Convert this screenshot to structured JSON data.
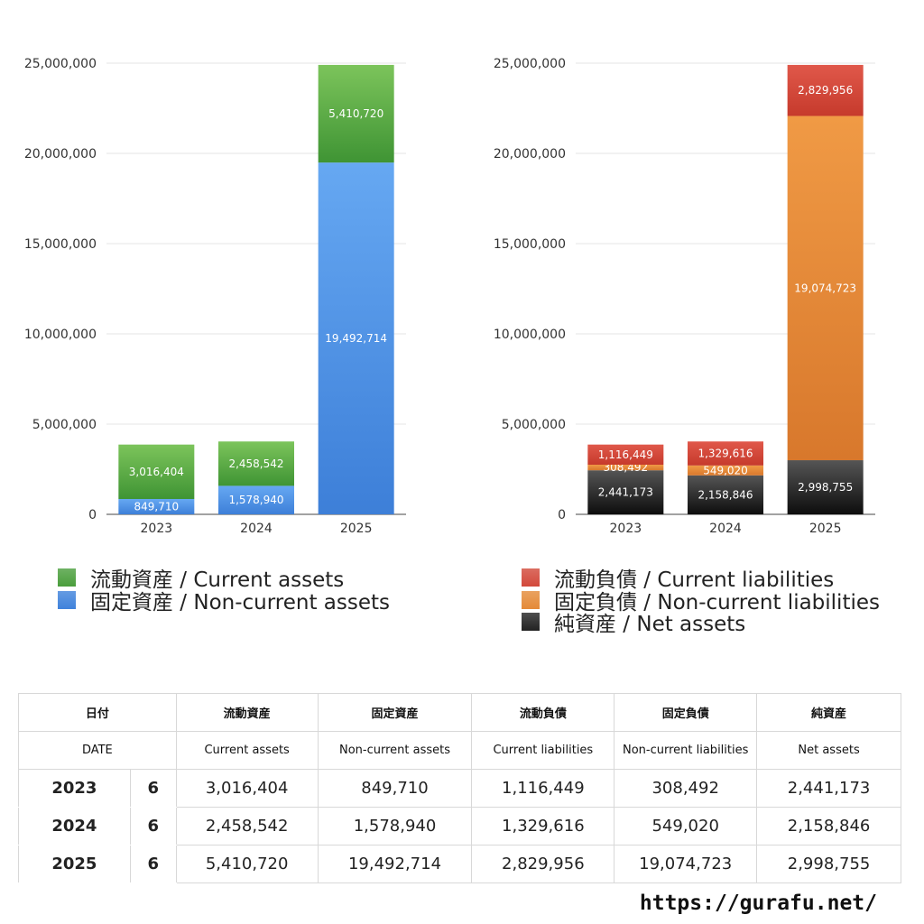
{
  "chart_data": [
    {
      "type": "bar",
      "stacked": true,
      "categories": [
        "2023",
        "2024",
        "2025"
      ],
      "series": [
        {
          "name": "固定資産 / Non-current assets",
          "values": [
            849710,
            1578940,
            19492714
          ],
          "color": "#3d7fd8",
          "color_top": "#66a8f2"
        },
        {
          "name": "流動資産 / Current assets",
          "values": [
            3016404,
            2458542,
            5410720
          ],
          "color": "#3f9434",
          "color_top": "#7cc45b"
        }
      ],
      "ylim": [
        0,
        25000000
      ],
      "yticks": [
        "0",
        "5,000,000",
        "10,000,000",
        "15,000,000",
        "20,000,000",
        "25,000,000"
      ],
      "grid": true,
      "legend": "bottom"
    },
    {
      "type": "bar",
      "stacked": true,
      "categories": [
        "2023",
        "2024",
        "2025"
      ],
      "series": [
        {
          "name": "純資産 / Net assets",
          "values": [
            2441173,
            2158846,
            2998755
          ],
          "color": "#0d0d0d",
          "color_top": "#555555"
        },
        {
          "name": "固定負債 / Non-current liabilities",
          "values": [
            308492,
            549020,
            19074723
          ],
          "color": "#d8782c",
          "color_top": "#f09a45"
        },
        {
          "name": "流動負債 / Current liabilities",
          "values": [
            1116449,
            1329616,
            2829956
          ],
          "color": "#c63a2c",
          "color_top": "#e0584a"
        }
      ],
      "ylim": [
        0,
        25000000
      ],
      "yticks": [
        "0",
        "5,000,000",
        "10,000,000",
        "15,000,000",
        "20,000,000",
        "25,000,000"
      ],
      "grid": true,
      "legend": "bottom"
    }
  ],
  "legend_assets": [
    {
      "label": "流動資産 / Current assets",
      "color": "#4a9e3c"
    },
    {
      "label": "固定資産 / Non-current assets",
      "color": "#3f82db"
    }
  ],
  "legend_liab": [
    {
      "label": "流動負債 / Current liabilities",
      "color": "#d2483a"
    },
    {
      "label": "固定負債 / Non-current liabilities",
      "color": "#e48a38"
    },
    {
      "label": "純資産 / Net assets",
      "color": "#222222"
    }
  ],
  "table": {
    "header_jp": [
      "日付",
      "流動資産",
      "固定資産",
      "流動負債",
      "固定負債",
      "純資産"
    ],
    "header_en": [
      "DATE",
      "Current assets",
      "Non-current assets",
      "Current liabilities",
      "Non-current liabilities",
      "Net assets"
    ],
    "rows": [
      {
        "year": "2023",
        "month": "6",
        "values": [
          "3,016,404",
          "849,710",
          "1,116,449",
          "308,492",
          "2,441,173"
        ]
      },
      {
        "year": "2024",
        "month": "6",
        "values": [
          "2,458,542",
          "1,578,940",
          "1,329,616",
          "549,020",
          "2,158,846"
        ]
      },
      {
        "year": "2025",
        "month": "6",
        "values": [
          "5,410,720",
          "19,492,714",
          "2,829,956",
          "19,074,723",
          "2,998,755"
        ]
      }
    ]
  },
  "site_url": "https://gurafu.net/"
}
